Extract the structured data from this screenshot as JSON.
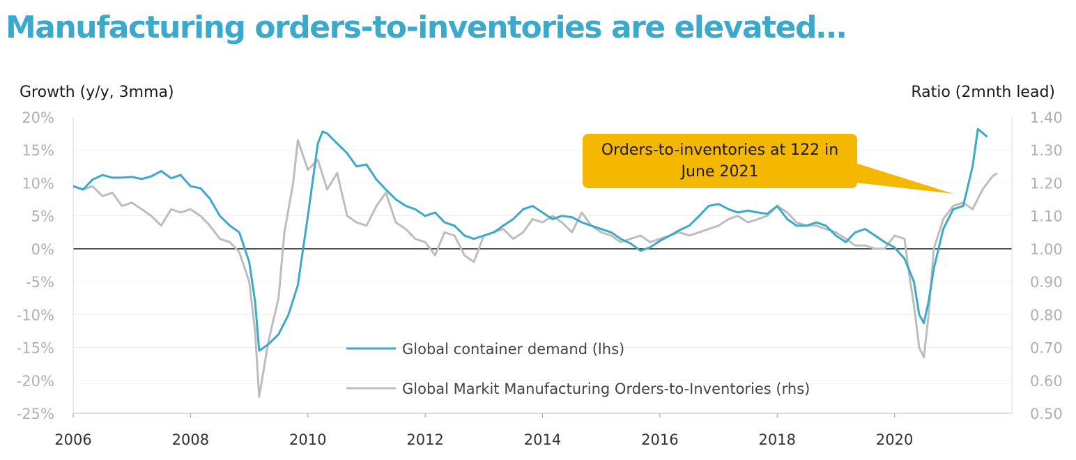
{
  "title": "Manufacturing orders-to-inventories are elevated…",
  "chart_data": {
    "type": "line",
    "left_axis_title": "Growth (y/y, 3mma)",
    "right_axis_title": "Ratio (2mnth lead)",
    "left_ticks": [
      "20%",
      "15%",
      "10%",
      "5%",
      "0%",
      "-5%",
      "-10%",
      "-15%",
      "-20%",
      "-25%"
    ],
    "right_ticks": [
      "1.40",
      "1.30",
      "1.20",
      "1.10",
      "1.00",
      "0.90",
      "0.80",
      "0.70",
      "0.60",
      "0.50"
    ],
    "x_ticks": [
      "2006",
      "2008",
      "2010",
      "2012",
      "2014",
      "2016",
      "2018",
      "2020"
    ],
    "ylim_left": [
      -25,
      20
    ],
    "ylim_right": [
      0.5,
      1.4
    ],
    "xlim": [
      2006.0,
      2022.0
    ],
    "callout": "Orders-to-inventories at 122 in June 2021",
    "colors": {
      "container": "#3aa9cc",
      "orders": "#bdbdbd",
      "callout": "#f5b800"
    },
    "series": [
      {
        "name": "Global container demand (lhs)",
        "axis": "left",
        "points": [
          [
            2006.0,
            9.5
          ],
          [
            2006.17,
            9.0
          ],
          [
            2006.33,
            10.5
          ],
          [
            2006.5,
            11.2
          ],
          [
            2006.67,
            10.8
          ],
          [
            2006.83,
            10.8
          ],
          [
            2007.0,
            10.9
          ],
          [
            2007.17,
            10.6
          ],
          [
            2007.33,
            11.0
          ],
          [
            2007.5,
            11.8
          ],
          [
            2007.67,
            10.7
          ],
          [
            2007.83,
            11.2
          ],
          [
            2008.0,
            9.5
          ],
          [
            2008.17,
            9.2
          ],
          [
            2008.33,
            7.6
          ],
          [
            2008.5,
            5.0
          ],
          [
            2008.67,
            3.5
          ],
          [
            2008.83,
            2.5
          ],
          [
            2009.0,
            -2.0
          ],
          [
            2009.1,
            -8.0
          ],
          [
            2009.17,
            -15.5
          ],
          [
            2009.33,
            -14.5
          ],
          [
            2009.5,
            -13.0
          ],
          [
            2009.67,
            -10.0
          ],
          [
            2009.83,
            -5.5
          ],
          [
            2010.0,
            5.0
          ],
          [
            2010.17,
            16.0
          ],
          [
            2010.25,
            17.8
          ],
          [
            2010.33,
            17.5
          ],
          [
            2010.5,
            16.0
          ],
          [
            2010.67,
            14.5
          ],
          [
            2010.83,
            12.5
          ],
          [
            2011.0,
            12.8
          ],
          [
            2011.17,
            10.5
          ],
          [
            2011.33,
            9.0
          ],
          [
            2011.5,
            7.5
          ],
          [
            2011.67,
            6.5
          ],
          [
            2011.83,
            6.0
          ],
          [
            2012.0,
            5.0
          ],
          [
            2012.17,
            5.5
          ],
          [
            2012.33,
            4.0
          ],
          [
            2012.5,
            3.5
          ],
          [
            2012.67,
            2.0
          ],
          [
            2012.83,
            1.5
          ],
          [
            2013.0,
            2.0
          ],
          [
            2013.17,
            2.5
          ],
          [
            2013.33,
            3.5
          ],
          [
            2013.5,
            4.5
          ],
          [
            2013.67,
            6.0
          ],
          [
            2013.83,
            6.5
          ],
          [
            2014.0,
            5.5
          ],
          [
            2014.17,
            4.5
          ],
          [
            2014.33,
            5.0
          ],
          [
            2014.5,
            4.8
          ],
          [
            2014.67,
            4.0
          ],
          [
            2014.83,
            3.5
          ],
          [
            2015.0,
            3.0
          ],
          [
            2015.17,
            2.5
          ],
          [
            2015.33,
            1.5
          ],
          [
            2015.5,
            0.8
          ],
          [
            2015.67,
            -0.3
          ],
          [
            2015.83,
            0.2
          ],
          [
            2016.0,
            1.2
          ],
          [
            2016.17,
            2.0
          ],
          [
            2016.33,
            2.8
          ],
          [
            2016.5,
            3.5
          ],
          [
            2016.67,
            5.0
          ],
          [
            2016.83,
            6.5
          ],
          [
            2017.0,
            6.8
          ],
          [
            2017.17,
            6.0
          ],
          [
            2017.33,
            5.5
          ],
          [
            2017.5,
            5.8
          ],
          [
            2017.67,
            5.5
          ],
          [
            2017.83,
            5.3
          ],
          [
            2018.0,
            6.5
          ],
          [
            2018.17,
            4.5
          ],
          [
            2018.33,
            3.5
          ],
          [
            2018.5,
            3.5
          ],
          [
            2018.67,
            4.0
          ],
          [
            2018.83,
            3.5
          ],
          [
            2019.0,
            2.0
          ],
          [
            2019.17,
            1.0
          ],
          [
            2019.33,
            2.5
          ],
          [
            2019.5,
            3.0
          ],
          [
            2019.67,
            2.0
          ],
          [
            2019.83,
            1.0
          ],
          [
            2020.0,
            0.2
          ],
          [
            2020.17,
            -1.5
          ],
          [
            2020.33,
            -5.0
          ],
          [
            2020.42,
            -10.0
          ],
          [
            2020.5,
            -11.3
          ],
          [
            2020.58,
            -8.0
          ],
          [
            2020.67,
            -3.0
          ],
          [
            2020.83,
            3.0
          ],
          [
            2021.0,
            6.0
          ],
          [
            2021.17,
            6.5
          ],
          [
            2021.33,
            12.5
          ],
          [
            2021.42,
            18.2
          ],
          [
            2021.58,
            17.0
          ]
        ]
      },
      {
        "name": "Global Markit Manufacturing Orders-to-Inventories (rhs)",
        "axis": "right",
        "points": [
          [
            2006.0,
            1.19
          ],
          [
            2006.17,
            1.18
          ],
          [
            2006.33,
            1.19
          ],
          [
            2006.5,
            1.16
          ],
          [
            2006.67,
            1.17
          ],
          [
            2006.83,
            1.13
          ],
          [
            2007.0,
            1.14
          ],
          [
            2007.17,
            1.12
          ],
          [
            2007.33,
            1.1
          ],
          [
            2007.5,
            1.07
          ],
          [
            2007.67,
            1.12
          ],
          [
            2007.83,
            1.11
          ],
          [
            2008.0,
            1.12
          ],
          [
            2008.17,
            1.1
          ],
          [
            2008.33,
            1.07
          ],
          [
            2008.5,
            1.03
          ],
          [
            2008.67,
            1.02
          ],
          [
            2008.83,
            0.99
          ],
          [
            2009.0,
            0.9
          ],
          [
            2009.1,
            0.75
          ],
          [
            2009.17,
            0.55
          ],
          [
            2009.33,
            0.72
          ],
          [
            2009.5,
            0.85
          ],
          [
            2009.6,
            1.05
          ],
          [
            2009.67,
            1.12
          ],
          [
            2009.75,
            1.2
          ],
          [
            2009.83,
            1.33
          ],
          [
            2010.0,
            1.24
          ],
          [
            2010.17,
            1.27
          ],
          [
            2010.33,
            1.18
          ],
          [
            2010.5,
            1.23
          ],
          [
            2010.67,
            1.1
          ],
          [
            2010.83,
            1.08
          ],
          [
            2011.0,
            1.07
          ],
          [
            2011.17,
            1.13
          ],
          [
            2011.33,
            1.17
          ],
          [
            2011.5,
            1.08
          ],
          [
            2011.67,
            1.06
          ],
          [
            2011.83,
            1.03
          ],
          [
            2012.0,
            1.02
          ],
          [
            2012.17,
            0.98
          ],
          [
            2012.33,
            1.05
          ],
          [
            2012.5,
            1.04
          ],
          [
            2012.67,
            0.98
          ],
          [
            2012.83,
            0.96
          ],
          [
            2013.0,
            1.04
          ],
          [
            2013.17,
            1.05
          ],
          [
            2013.33,
            1.06
          ],
          [
            2013.5,
            1.03
          ],
          [
            2013.67,
            1.05
          ],
          [
            2013.83,
            1.09
          ],
          [
            2014.0,
            1.08
          ],
          [
            2014.17,
            1.1
          ],
          [
            2014.33,
            1.08
          ],
          [
            2014.5,
            1.05
          ],
          [
            2014.67,
            1.11
          ],
          [
            2014.83,
            1.07
          ],
          [
            2015.0,
            1.05
          ],
          [
            2015.17,
            1.04
          ],
          [
            2015.33,
            1.02
          ],
          [
            2015.5,
            1.03
          ],
          [
            2015.67,
            1.04
          ],
          [
            2015.83,
            1.02
          ],
          [
            2016.0,
            1.03
          ],
          [
            2016.17,
            1.04
          ],
          [
            2016.33,
            1.05
          ],
          [
            2016.5,
            1.04
          ],
          [
            2016.67,
            1.05
          ],
          [
            2016.83,
            1.06
          ],
          [
            2017.0,
            1.07
          ],
          [
            2017.17,
            1.09
          ],
          [
            2017.33,
            1.1
          ],
          [
            2017.5,
            1.08
          ],
          [
            2017.67,
            1.09
          ],
          [
            2017.83,
            1.1
          ],
          [
            2018.0,
            1.13
          ],
          [
            2018.17,
            1.11
          ],
          [
            2018.33,
            1.08
          ],
          [
            2018.5,
            1.07
          ],
          [
            2018.67,
            1.07
          ],
          [
            2018.83,
            1.06
          ],
          [
            2019.0,
            1.05
          ],
          [
            2019.17,
            1.03
          ],
          [
            2019.33,
            1.01
          ],
          [
            2019.5,
            1.01
          ],
          [
            2019.67,
            1.0
          ],
          [
            2019.83,
            1.0
          ],
          [
            2020.0,
            1.04
          ],
          [
            2020.17,
            1.03
          ],
          [
            2020.25,
            0.92
          ],
          [
            2020.33,
            0.83
          ],
          [
            2020.42,
            0.7
          ],
          [
            2020.5,
            0.67
          ],
          [
            2020.58,
            0.8
          ],
          [
            2020.67,
            1.0
          ],
          [
            2020.83,
            1.09
          ],
          [
            2021.0,
            1.13
          ],
          [
            2021.17,
            1.14
          ],
          [
            2021.33,
            1.12
          ],
          [
            2021.5,
            1.18
          ],
          [
            2021.67,
            1.22
          ],
          [
            2021.75,
            1.23
          ]
        ]
      }
    ]
  }
}
